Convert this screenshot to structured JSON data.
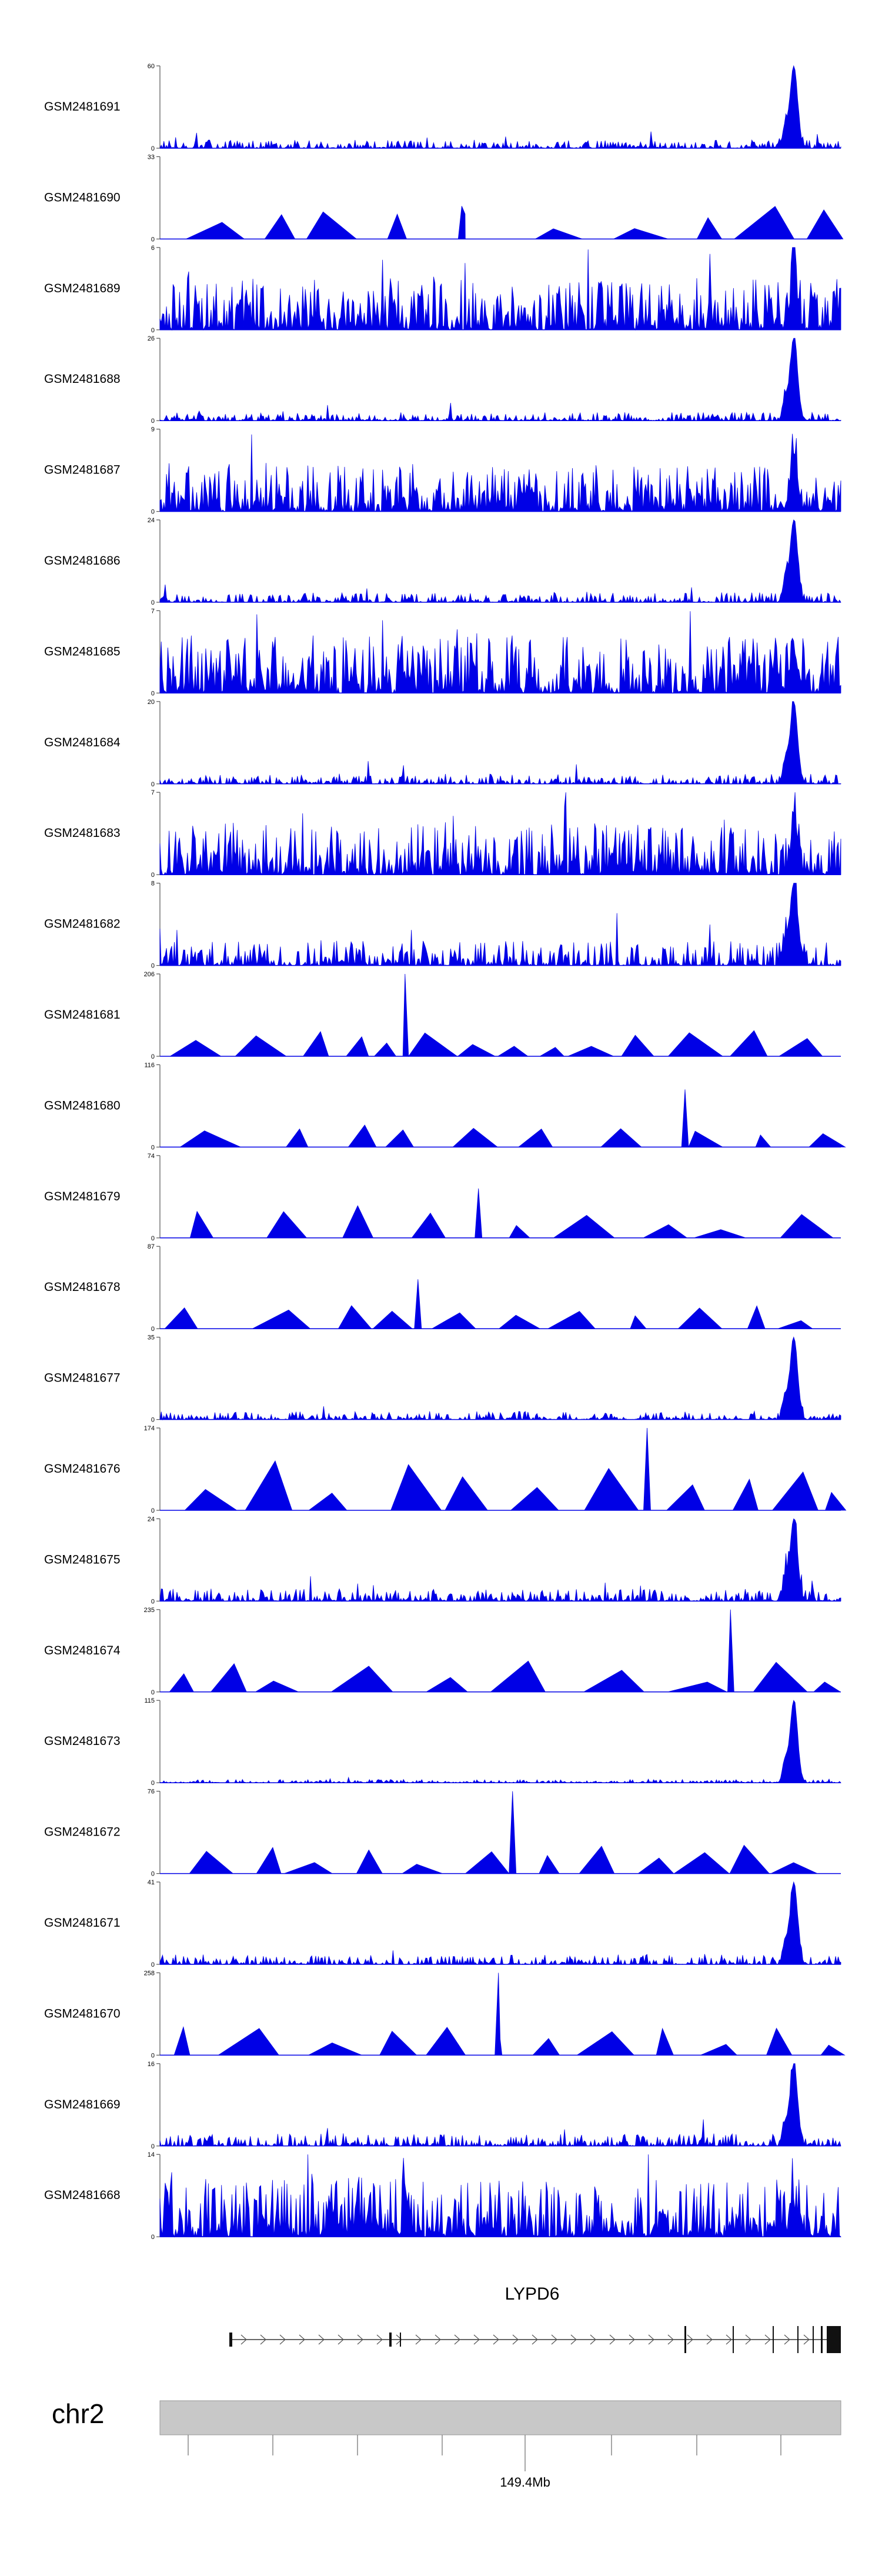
{
  "chart_data": {
    "type": "area",
    "title": "",
    "color": "#0000e6",
    "tracks": [
      {
        "name": "GSM2481691",
        "ymax": 60,
        "style": "noisy",
        "peak": 1.0,
        "base": 0.1
      },
      {
        "name": "GSM2481690",
        "ymax": 33,
        "style": "sparse",
        "peak": 0.4,
        "base": 0.55
      },
      {
        "name": "GSM2481689",
        "ymax": 6,
        "style": "dense",
        "peak": 0.55,
        "base": 0.45
      },
      {
        "name": "GSM2481688",
        "ymax": 26,
        "style": "noisy",
        "peak": 1.0,
        "base": 0.1
      },
      {
        "name": "GSM2481687",
        "ymax": 9,
        "style": "dense",
        "peak": 0.6,
        "base": 0.4
      },
      {
        "name": "GSM2481686",
        "ymax": 24,
        "style": "noisy",
        "peak": 1.0,
        "base": 0.12
      },
      {
        "name": "GSM2481685",
        "ymax": 7,
        "style": "dense",
        "peak": 0.5,
        "base": 0.5
      },
      {
        "name": "GSM2481684",
        "ymax": 20,
        "style": "noisy",
        "peak": 1.0,
        "base": 0.12
      },
      {
        "name": "GSM2481683",
        "ymax": 7,
        "style": "dense",
        "peak": 0.5,
        "base": 0.45
      },
      {
        "name": "GSM2481682",
        "ymax": 8,
        "style": "noisy",
        "peak": 1.0,
        "base": 0.3
      },
      {
        "name": "GSM2481681",
        "ymax": 206,
        "style": "sparse",
        "peak": 1.0,
        "base": 0.4
      },
      {
        "name": "GSM2481680",
        "ymax": 116,
        "style": "sparse",
        "peak": 0.7,
        "base": 0.35
      },
      {
        "name": "GSM2481679",
        "ymax": 74,
        "style": "sparse",
        "peak": 0.6,
        "base": 0.5
      },
      {
        "name": "GSM2481678",
        "ymax": 87,
        "style": "sparse",
        "peak": 0.6,
        "base": 0.35
      },
      {
        "name": "GSM2481677",
        "ymax": 35,
        "style": "noisy",
        "peak": 1.0,
        "base": 0.1
      },
      {
        "name": "GSM2481676",
        "ymax": 174,
        "style": "sparse",
        "peak": 1.0,
        "base": 0.9
      },
      {
        "name": "GSM2481675",
        "ymax": 24,
        "style": "noisy",
        "peak": 1.0,
        "base": 0.15
      },
      {
        "name": "GSM2481674",
        "ymax": 235,
        "style": "sparse",
        "peak": 1.0,
        "base": 0.5
      },
      {
        "name": "GSM2481673",
        "ymax": 115,
        "style": "noisy",
        "peak": 1.0,
        "base": 0.04
      },
      {
        "name": "GSM2481672",
        "ymax": 76,
        "style": "sparse",
        "peak": 1.0,
        "base": 0.45
      },
      {
        "name": "GSM2481671",
        "ymax": 41,
        "style": "noisy",
        "peak": 1.0,
        "base": 0.12
      },
      {
        "name": "GSM2481670",
        "ymax": 258,
        "style": "sparse",
        "peak": 1.0,
        "base": 0.45
      },
      {
        "name": "GSM2481669",
        "ymax": 16,
        "style": "noisy",
        "peak": 1.0,
        "base": 0.15
      },
      {
        "name": "GSM2481668",
        "ymax": 14,
        "style": "dense",
        "peak": 0.3,
        "base": 0.5
      }
    ],
    "gene": {
      "name": "LYPD6"
    },
    "chromosome": {
      "name": "chr2",
      "tick_label": "149.4Mb"
    },
    "y_min_label": "0"
  }
}
